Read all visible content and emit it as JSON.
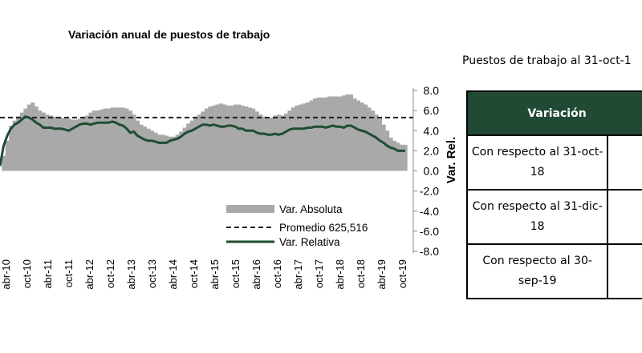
{
  "chart_data": {
    "type": "area+line",
    "title": "Variación anual de puestos de trabajo",
    "ylabel": "Var. Rel.",
    "ylim": [
      -8.0,
      8.0
    ],
    "y_ticks": [
      "8.0",
      "6.0",
      "4.0",
      "2.0",
      "0.0",
      "-2.0",
      "-4.0",
      "-6.0",
      "-8.0"
    ],
    "x_ticks": [
      "abr-10",
      "oct-10",
      "abr-11",
      "oct-11",
      "abr-12",
      "oct-12",
      "abr-13",
      "oct-13",
      "abr-14",
      "oct-14",
      "abr-15",
      "oct-15",
      "abr-16",
      "oct-16",
      "abr-17",
      "oct-17",
      "abr-18",
      "oct-18",
      "abr-19",
      "oct-19"
    ],
    "legend": {
      "absoluta": "Var. Absoluta",
      "promedio": "Promedio 625,516",
      "relativa": "Var. Relativa"
    },
    "average_line": 5.3,
    "series": [
      {
        "name": "Var. Absoluta",
        "style": "area",
        "color": "#a9a9a9",
        "values": [
          0.0,
          1.5,
          3.0,
          4.5,
          5.0,
          5.4,
          5.8,
          6.2,
          6.6,
          6.8,
          6.4,
          6.0,
          5.8,
          5.6,
          5.5,
          5.4,
          5.3,
          5.3,
          5.2,
          5.2,
          5.1,
          5.1,
          5.2,
          5.3,
          5.5,
          5.8,
          6.0,
          6.0,
          6.1,
          6.2,
          6.2,
          6.3,
          6.3,
          6.3,
          6.3,
          6.2,
          6.0,
          5.6,
          5.0,
          4.6,
          4.4,
          4.2,
          4.0,
          3.8,
          3.6,
          3.6,
          3.5,
          3.4,
          3.4,
          3.6,
          3.9,
          4.3,
          4.7,
          5.0,
          5.3,
          5.6,
          5.9,
          6.2,
          6.4,
          6.5,
          6.6,
          6.7,
          6.6,
          6.5,
          6.5,
          6.6,
          6.6,
          6.5,
          6.4,
          6.3,
          6.2,
          5.9,
          5.6,
          5.4,
          5.3,
          5.3,
          5.5,
          5.6,
          5.5,
          5.7,
          6.0,
          6.3,
          6.5,
          6.6,
          6.7,
          6.8,
          7.0,
          7.2,
          7.3,
          7.3,
          7.3,
          7.4,
          7.4,
          7.4,
          7.4,
          7.5,
          7.6,
          7.6,
          7.2,
          7.0,
          6.8,
          6.6,
          6.3,
          6.0,
          5.6,
          5.2,
          4.6,
          4.0,
          3.3,
          3.0,
          2.8,
          2.6,
          2.6
        ]
      },
      {
        "name": "Var. Relativa",
        "style": "line",
        "color": "#1e4d34",
        "values": [
          0.5,
          2.5,
          3.5,
          4.2,
          4.6,
          4.8,
          5.1,
          5.4,
          5.3,
          5.1,
          4.8,
          4.6,
          4.3,
          4.3,
          4.3,
          4.2,
          4.2,
          4.2,
          4.1,
          4.0,
          4.2,
          4.4,
          4.6,
          4.7,
          4.7,
          4.6,
          4.7,
          4.8,
          4.8,
          4.8,
          4.8,
          4.9,
          4.8,
          4.6,
          4.5,
          4.2,
          3.8,
          3.9,
          3.5,
          3.3,
          3.1,
          3.0,
          3.0,
          2.9,
          2.8,
          2.8,
          2.8,
          3.0,
          3.1,
          3.2,
          3.4,
          3.7,
          3.9,
          4.0,
          4.2,
          4.4,
          4.6,
          4.6,
          4.5,
          4.6,
          4.5,
          4.4,
          4.4,
          4.5,
          4.5,
          4.4,
          4.2,
          4.2,
          4.0,
          4.0,
          4.0,
          3.8,
          3.7,
          3.7,
          3.6,
          3.6,
          3.7,
          3.6,
          3.7,
          3.9,
          4.1,
          4.2,
          4.2,
          4.2,
          4.2,
          4.3,
          4.3,
          4.4,
          4.4,
          4.4,
          4.3,
          4.4,
          4.5,
          4.4,
          4.4,
          4.3,
          4.5,
          4.5,
          4.3,
          4.1,
          4.0,
          3.9,
          3.7,
          3.5,
          3.3,
          3.0,
          2.8,
          2.5,
          2.3,
          2.2,
          2.0,
          2.0,
          2.0
        ]
      }
    ]
  },
  "side_panel": {
    "title": "Puestos de trabajo al 31-oct-1",
    "table": {
      "header": "Variación",
      "header_color": "#214a35",
      "rows": [
        {
          "label": "Con respecto al 31-oct-18",
          "value": ""
        },
        {
          "label": "Con respecto al 31-dic-18",
          "value": ""
        },
        {
          "label": "Con respecto al 30-sep-19",
          "value": ""
        }
      ]
    }
  }
}
